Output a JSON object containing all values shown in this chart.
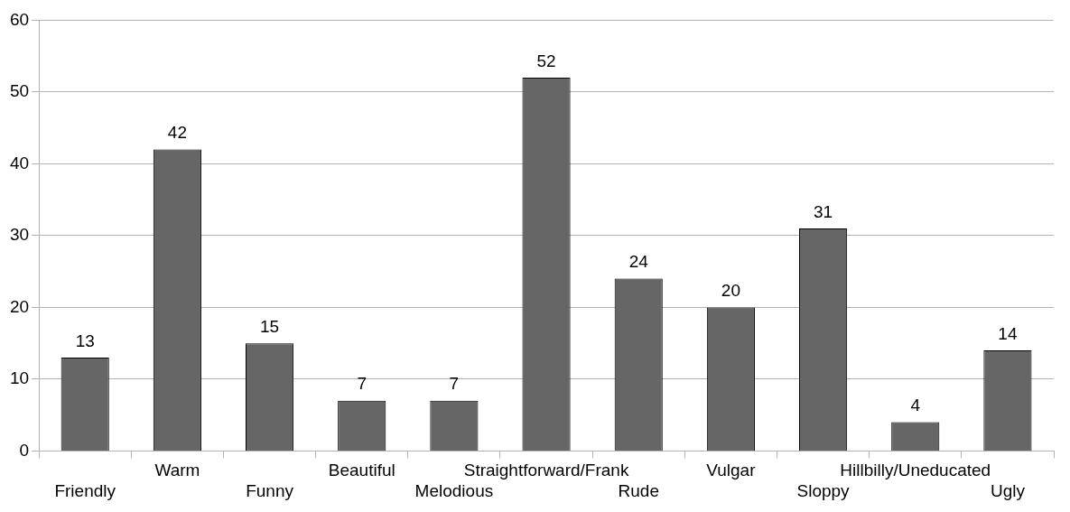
{
  "chart_data": {
    "type": "bar",
    "categories": [
      "Friendly",
      "Warm",
      "Funny",
      "Beautiful",
      "Melodious",
      "Straightforward/Frank",
      "Rude",
      "Vulgar",
      "Sloppy",
      "Hillbilly/Uneducated",
      "Ugly"
    ],
    "values": [
      13,
      42,
      15,
      7,
      7,
      52,
      24,
      20,
      31,
      4,
      14
    ],
    "color": "#666666",
    "ylim": [
      0,
      60
    ],
    "yticks": [
      0,
      10,
      20,
      30,
      40,
      50,
      60
    ],
    "grid": "y",
    "legend": false,
    "data_labels": true
  }
}
